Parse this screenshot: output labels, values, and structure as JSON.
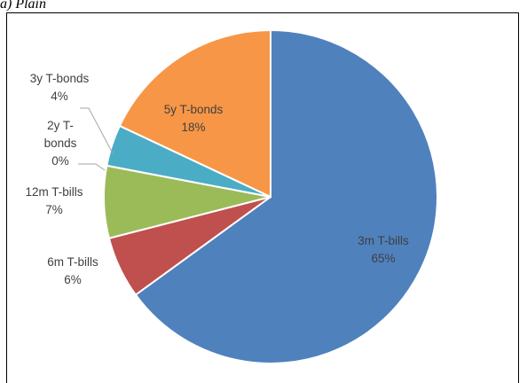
{
  "caption": {
    "fragment": "a) Plain"
  },
  "chart_data": {
    "type": "pie",
    "title": "",
    "slices": [
      {
        "label": "3m T-bills",
        "value": 65,
        "percent_label": "65%",
        "color": "#4F81BD"
      },
      {
        "label": "6m T-bills",
        "value": 6,
        "percent_label": "6%",
        "color": "#C0504D"
      },
      {
        "label": "12m T-bills",
        "value": 7,
        "percent_label": "7%",
        "color": "#9BBB59"
      },
      {
        "label": "2y T-bonds",
        "value": 0,
        "percent_label": "0%",
        "color": "#8064A2"
      },
      {
        "label": "3y T-bonds",
        "value": 4,
        "percent_label": "4%",
        "color": "#4BACC6"
      },
      {
        "label": "5y T-bonds",
        "value": 18,
        "percent_label": "18%",
        "color": "#F79646"
      }
    ],
    "label_lines": {
      "3m T-bills": [
        "3m T-bills",
        "65%"
      ],
      "6m T-bills": [
        "6m T-bills",
        "6%"
      ],
      "12m T-bills": [
        "12m T-bills",
        "7%"
      ],
      "2y T-bonds": [
        "2y T-",
        "bonds",
        "0%"
      ],
      "3y T-bonds": [
        "3y T-bonds",
        "4%"
      ],
      "5y T-bonds": [
        "5y T-bonds",
        "18%"
      ]
    },
    "start_angle": "12 o'clock, clockwise",
    "legend": "none (category names labeled on slices)"
  }
}
